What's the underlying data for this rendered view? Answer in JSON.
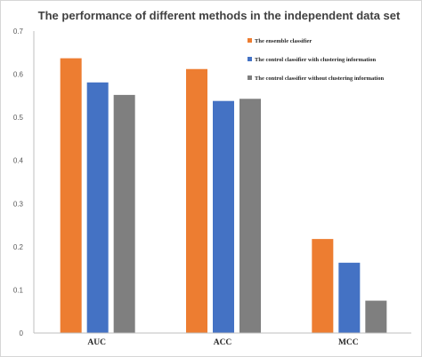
{
  "chart_data": {
    "type": "bar",
    "title": "The performance of different methods in the independent data set",
    "xlabel": "",
    "ylabel": "",
    "categories": [
      "AUC",
      "ACC",
      "MCC"
    ],
    "ylim": [
      0,
      0.7
    ],
    "yticks": [
      "0",
      "0.1",
      "0.2",
      "0.3",
      "0.4",
      "0.5",
      "0.6",
      "0.7"
    ],
    "grid": false,
    "legend_position": "top-right",
    "series": [
      {
        "name": "The ensemble classifier",
        "color": "#ED7D31",
        "values": [
          0.637,
          0.612,
          0.218
        ]
      },
      {
        "name": "The control classifier with clustering information",
        "color": "#4472C4",
        "values": [
          0.581,
          0.538,
          0.163
        ]
      },
      {
        "name": "The control classifier without clustering information",
        "color": "#7F7F7F",
        "values": [
          0.552,
          0.543,
          0.075
        ]
      }
    ]
  }
}
